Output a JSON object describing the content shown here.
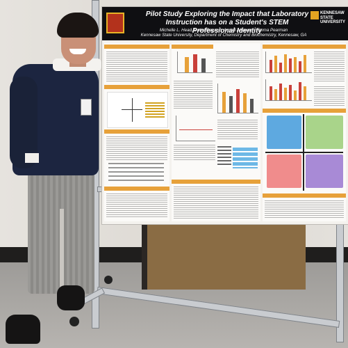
{
  "poster": {
    "title": "Pilot Study Exploring the Impact that Laboratory Instruction has on a Student's STEM Professional Identity",
    "authors": "Michelle L. Head, Datiel Dayani*, Amjad Alkawam, Emma Pearman",
    "affiliation": "Kennesaw State University, Department of Chemistry and Biochemistry, Kennesaw, GA",
    "logo_text": "KENNESAW STATE UNIVERSITY",
    "colors": {
      "header": "#0f0f12",
      "section": "#e7a13a",
      "accent_red": "#c9403a",
      "sticky_blue": "#5ea9e0",
      "sticky_green": "#a9d48a",
      "sticky_pink": "#f08c8c",
      "sticky_purple": "#a88ad6"
    }
  }
}
